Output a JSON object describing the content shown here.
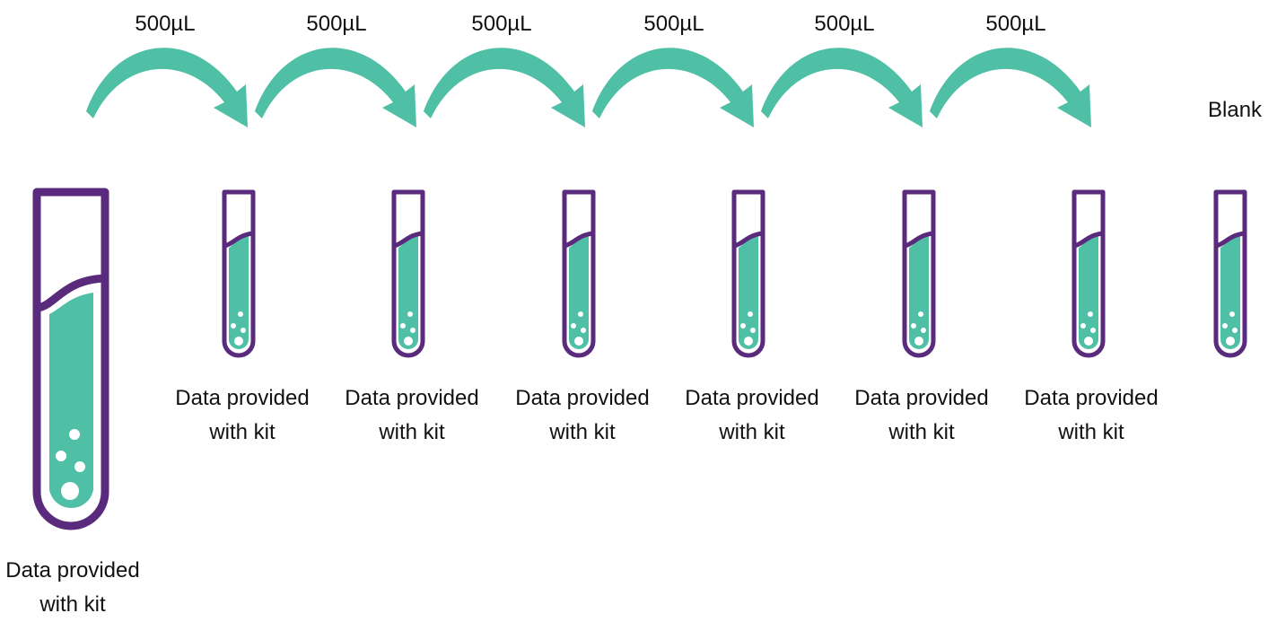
{
  "colors": {
    "tube_outline": "#5a2a7c",
    "liquid": "#4fbfa5",
    "arrow": "#4fbfa5",
    "bubble": "#ffffff",
    "text": "#111111"
  },
  "stock": {
    "label": "Data provided\nwith kit",
    "icon": "test-tube-icon"
  },
  "transfers": [
    {
      "volume": "500µL",
      "icon": "curved-arrow-icon"
    },
    {
      "volume": "500µL",
      "icon": "curved-arrow-icon"
    },
    {
      "volume": "500µL",
      "icon": "curved-arrow-icon"
    },
    {
      "volume": "500µL",
      "icon": "curved-arrow-icon"
    },
    {
      "volume": "500µL",
      "icon": "curved-arrow-icon"
    },
    {
      "volume": "500µL",
      "icon": "curved-arrow-icon"
    }
  ],
  "dilution_tubes": [
    {
      "label": "Data provided\nwith kit",
      "icon": "test-tube-icon"
    },
    {
      "label": "Data provided\nwith kit",
      "icon": "test-tube-icon"
    },
    {
      "label": "Data provided\nwith kit",
      "icon": "test-tube-icon"
    },
    {
      "label": "Data provided\nwith kit",
      "icon": "test-tube-icon"
    },
    {
      "label": "Data provided\nwith kit",
      "icon": "test-tube-icon"
    },
    {
      "label": "Data provided\nwith kit",
      "icon": "test-tube-icon"
    }
  ],
  "blank": {
    "label": "Blank",
    "icon": "test-tube-icon"
  }
}
